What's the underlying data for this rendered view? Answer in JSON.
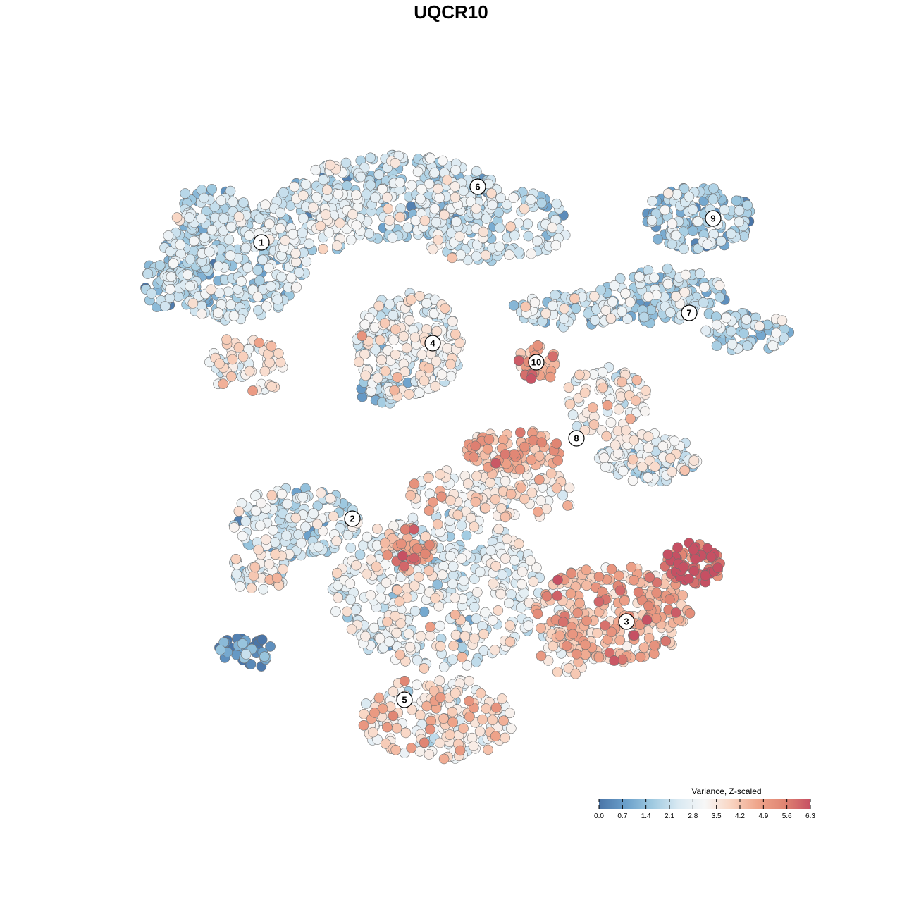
{
  "chart_data": {
    "type": "scatter",
    "title": "UQCR10",
    "xlabel": "",
    "ylabel": "",
    "grid": false,
    "legend": {
      "title": "Variance, Z-scaled",
      "placement": "bottom-right",
      "ticks": [
        "0.0",
        "0.7",
        "1.4",
        "2.1",
        "2.8",
        "3.5",
        "4.2",
        "4.9",
        "5.6",
        "6.3"
      ],
      "range": [
        0,
        6.3
      ],
      "colors": [
        "#4a75a8",
        "#6a9fca",
        "#9ec9e0",
        "#d9e9f2",
        "#f7f7f7",
        "#f9d5c2",
        "#efa58b",
        "#e08573",
        "#c65063"
      ]
    },
    "clusters": [
      {
        "label": "1",
        "mean_value": 2.0
      },
      {
        "label": "2",
        "mean_value": 2.2
      },
      {
        "label": "3",
        "mean_value": 4.4
      },
      {
        "label": "4",
        "mean_value": 2.7
      },
      {
        "label": "5",
        "mean_value": 3.1
      },
      {
        "label": "6",
        "mean_value": 2.1
      },
      {
        "label": "7",
        "mean_value": 1.9
      },
      {
        "label": "8",
        "mean_value": 3.8
      },
      {
        "label": "9",
        "mean_value": 1.7
      },
      {
        "label": "10",
        "mean_value": 4.6
      }
    ]
  }
}
